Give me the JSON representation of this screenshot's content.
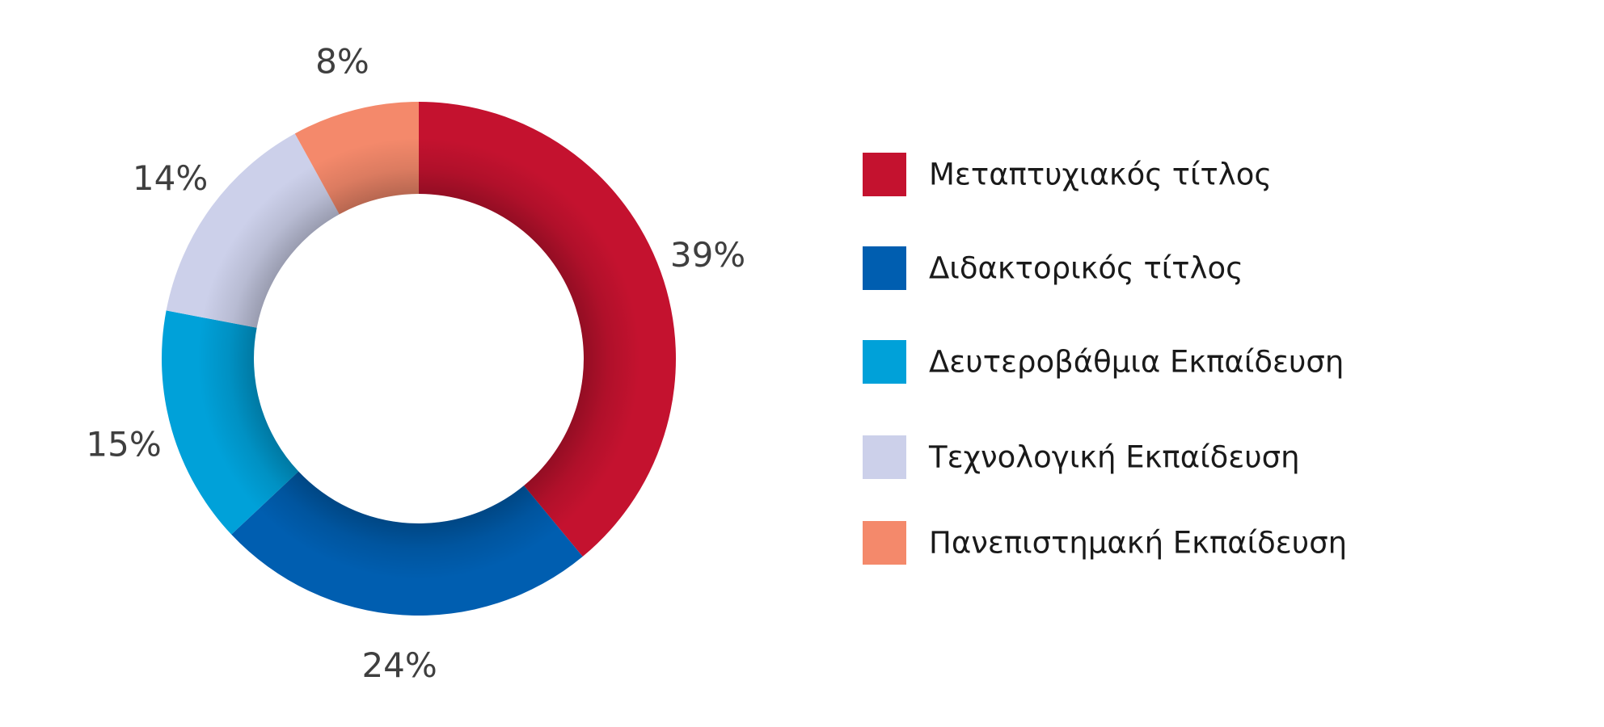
{
  "chart_data": {
    "type": "pie",
    "subtype": "donut",
    "legend_position": "right",
    "series": [
      {
        "name": "Μεταπτυχιακός τίτλος",
        "value": 39,
        "label": "39%",
        "color": "#c4122f"
      },
      {
        "name": "Διδακτορικός τίτλος",
        "value": 24,
        "label": "24%",
        "color": "#005eb0"
      },
      {
        "name": "Δευτεροβάθμια Εκπαίδευση",
        "value": 15,
        "label": "15%",
        "color": "#00a1d9"
      },
      {
        "name": "Τεχνολογική Εκπαίδευση",
        "value": 14,
        "label": "14%",
        "color": "#ccd0ea"
      },
      {
        "name": "Πανεπιστημακή Εκπαίδευση",
        "value": 8,
        "label": "8%",
        "color": "#f4896b"
      }
    ]
  }
}
